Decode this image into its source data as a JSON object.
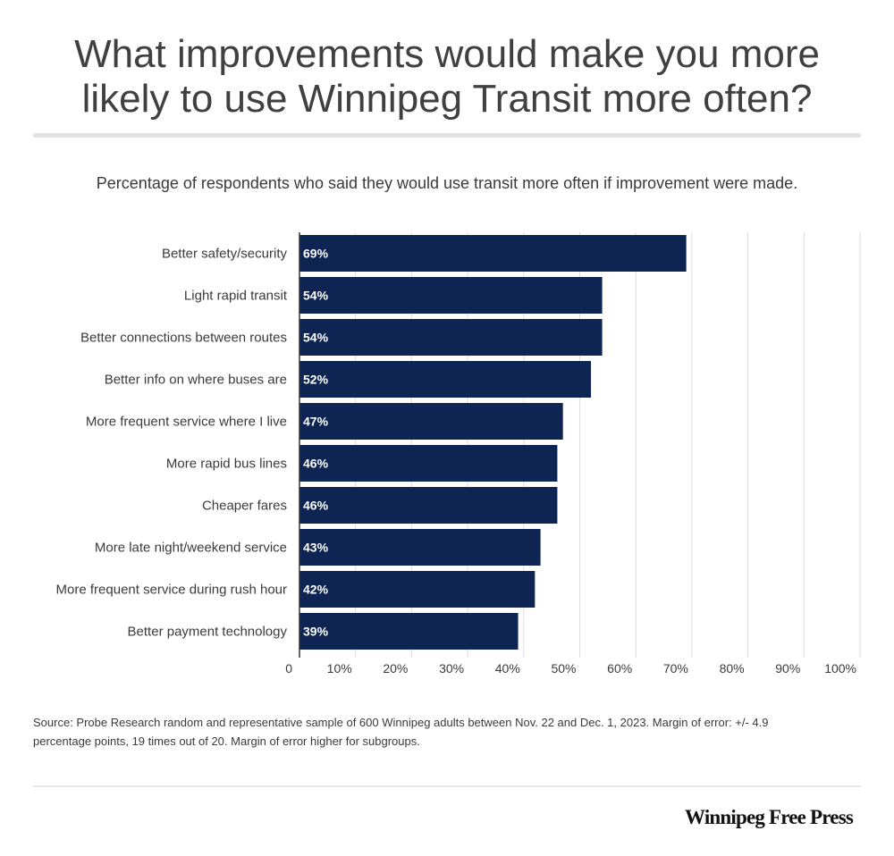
{
  "title": "What improvements would make you more likely to use Winnipeg Transit more often?",
  "subtitle": "Percentage of respondents who said they would use transit more often if improvement were made.",
  "source": "Source: Probe Research random and representative sample of 600 Winnipeg adults between Nov. 22 and Dec. 1, 2023. Margin of error: +/- 4.9 percentage points, 19 times out of 20. Margin of error higher for subgroups.",
  "brand": "Winnipeg Free Press",
  "colors": {
    "bar": "#0e2554",
    "bar_label": "#ffffff",
    "grid": "#dddddd",
    "text": "#3a3a3a"
  },
  "chart_data": {
    "type": "bar",
    "orientation": "horizontal",
    "categories": [
      "Better safety/security",
      "Light rapid transit",
      "Better connections between routes",
      "Better info on where buses are",
      "More frequent service where I live",
      "More rapid bus lines",
      "Cheaper fares",
      "More late night/weekend service",
      "More frequent service during rush hour",
      "Better payment technology"
    ],
    "values": [
      69,
      54,
      54,
      52,
      47,
      46,
      46,
      43,
      42,
      39
    ],
    "value_labels": [
      "69%",
      "54%",
      "54%",
      "52%",
      "47%",
      "46%",
      "46%",
      "43%",
      "42%",
      "39%"
    ],
    "xlim": [
      0,
      100
    ],
    "x_ticks": [
      0,
      10,
      20,
      30,
      40,
      50,
      60,
      70,
      80,
      90,
      100
    ],
    "x_tick_labels": [
      "0",
      "10%",
      "20%",
      "30%",
      "40%",
      "50%",
      "60%",
      "70%",
      "80%",
      "90%",
      "100%"
    ],
    "grid": true,
    "legend": "none"
  }
}
